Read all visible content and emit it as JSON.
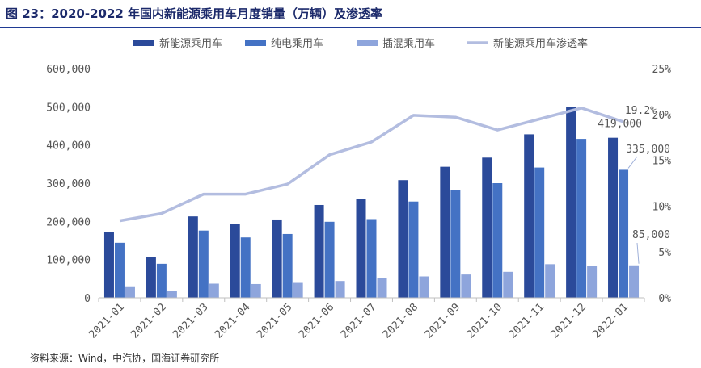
{
  "header": {
    "title": "图 23：2020-2022 年国内新能源乘用车月度销量（万辆）及渗透率"
  },
  "footer": {
    "source": "资料来源：Wind，中汽协，国海证券研究所"
  },
  "colors": {
    "nev": "#2b4a9a",
    "bev": "#4472c4",
    "phev": "#8ea5dc",
    "rate": "#b3bde0"
  },
  "chart_data": {
    "type": "bar",
    "title": "图 23：2020-2022 年国内新能源乘用车月度销量（万辆）及渗透率",
    "categories": [
      "2021-01",
      "2021-02",
      "2021-03",
      "2021-04",
      "2021-05",
      "2021-06",
      "2021-07",
      "2021-08",
      "2021-09",
      "2021-10",
      "2021-11",
      "2021-12",
      "2022-01"
    ],
    "series": [
      {
        "name": "新能源乘用车",
        "type": "bar",
        "axis": "left",
        "values": [
          172000,
          107000,
          213000,
          194000,
          205000,
          243000,
          258000,
          308000,
          343000,
          367000,
          428000,
          500000,
          419000
        ]
      },
      {
        "name": "纯电乘用车",
        "type": "bar",
        "axis": "left",
        "values": [
          144000,
          89000,
          176000,
          158000,
          167000,
          199000,
          206000,
          252000,
          282000,
          300000,
          341000,
          416000,
          335000
        ]
      },
      {
        "name": "插混乘用车",
        "type": "bar",
        "axis": "left",
        "values": [
          28000,
          18000,
          37000,
          36000,
          39000,
          44000,
          51000,
          56000,
          61000,
          68000,
          88000,
          83000,
          85000
        ]
      },
      {
        "name": "新能源乘用车渗透率",
        "type": "line",
        "axis": "right",
        "values": [
          8.4,
          9.2,
          11.3,
          11.3,
          12.4,
          15.6,
          17.0,
          19.9,
          19.7,
          18.3,
          19.5,
          20.7,
          19.2
        ]
      }
    ],
    "y_left": {
      "ylim": [
        0,
        600000
      ],
      "ticks": [
        "0",
        "100,000",
        "200,000",
        "300,000",
        "400,000",
        "500,000",
        "600,000"
      ]
    },
    "y_right": {
      "ylim": [
        0,
        25
      ],
      "ticks": [
        "0%",
        "5%",
        "10%",
        "15%",
        "20%",
        "25%"
      ]
    },
    "legend_position": "top",
    "grid": false,
    "annotations": [
      "19.2%",
      "419,000",
      "335,000",
      "85,000"
    ]
  }
}
